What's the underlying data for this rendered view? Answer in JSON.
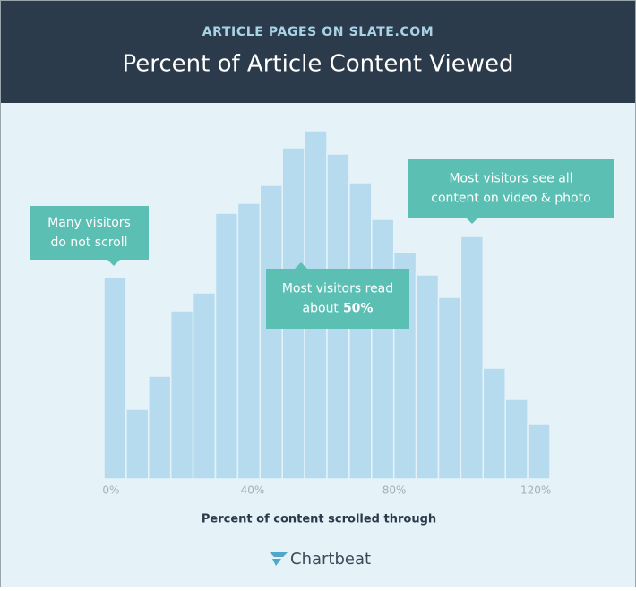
{
  "chart_data": {
    "type": "histogram",
    "subtitle": "ARTICLE PAGES ON SLATE.COM",
    "title": "Percent of Article Content Viewed",
    "x_label": "Percent of content scrolled through",
    "source": "Chartbeat",
    "bins": [
      -2,
      4.3,
      10.6,
      16.9,
      23.2,
      29.5,
      35.8,
      42.1,
      48.4,
      54.7,
      61,
      67.3,
      73.6,
      79.9,
      86.2,
      92.5,
      98.8,
      105.1,
      111.4,
      117.7,
      124
    ],
    "values": [
      225,
      78,
      115,
      188,
      208,
      297,
      308,
      328,
      370,
      389,
      363,
      331,
      290,
      253,
      228,
      203,
      271,
      124,
      89,
      61
    ],
    "color": "#b6dbee",
    "xlim": [
      -2,
      124
    ],
    "xticks": [
      {
        "value": 0,
        "label": "0%"
      },
      {
        "value": 40,
        "label": "40%"
      },
      {
        "value": 80,
        "label": "80%"
      },
      {
        "value": 120,
        "label": "120%"
      }
    ],
    "ylim": [
      0,
      400
    ],
    "annotations": [
      {
        "lines": [
          "Many visitors",
          "do not scroll"
        ]
      },
      {
        "lines": [
          "Most visitors read",
          "about"
        ],
        "emphasis": "50%"
      },
      {
        "lines": [
          "Most visitors see all",
          "content on video & photo"
        ]
      }
    ]
  }
}
